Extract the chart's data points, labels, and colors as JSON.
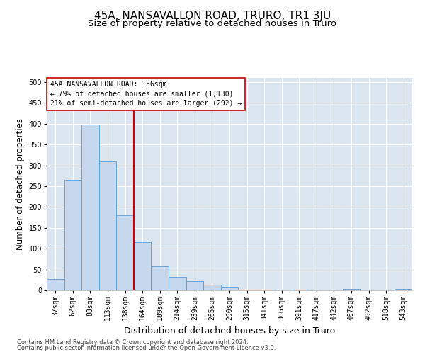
{
  "title": "45A, NANSAVALLON ROAD, TRURO, TR1 3JU",
  "subtitle": "Size of property relative to detached houses in Truro",
  "xlabel": "Distribution of detached houses by size in Truro",
  "ylabel": "Number of detached properties",
  "footer_line1": "Contains HM Land Registry data © Crown copyright and database right 2024.",
  "footer_line2": "Contains public sector information licensed under the Open Government Licence v3.0.",
  "bin_labels": [
    "37sqm",
    "62sqm",
    "88sqm",
    "113sqm",
    "138sqm",
    "164sqm",
    "189sqm",
    "214sqm",
    "239sqm",
    "265sqm",
    "290sqm",
    "315sqm",
    "341sqm",
    "366sqm",
    "391sqm",
    "417sqm",
    "442sqm",
    "467sqm",
    "492sqm",
    "518sqm",
    "543sqm"
  ],
  "bar_values": [
    27,
    265,
    397,
    310,
    180,
    115,
    57,
    32,
    22,
    14,
    7,
    2,
    1,
    0,
    1,
    0,
    0,
    3,
    0,
    0,
    3
  ],
  "bar_color": "#c5d8ed",
  "bar_edge_color": "#5b9bd5",
  "vline_bin_index": 5,
  "vline_color": "#cc0000",
  "annotation_text": "45A NANSAVALLON ROAD: 156sqm\n← 79% of detached houses are smaller (1,130)\n21% of semi-detached houses are larger (292) →",
  "annotation_box_color": "#ffffff",
  "annotation_edge_color": "#cc0000",
  "ylim": [
    0,
    510
  ],
  "yticks": [
    0,
    50,
    100,
    150,
    200,
    250,
    300,
    350,
    400,
    450,
    500
  ],
  "plot_bg_color": "#dce6f1",
  "title_fontsize": 11,
  "subtitle_fontsize": 9.5,
  "ylabel_fontsize": 8.5,
  "xlabel_fontsize": 9,
  "tick_fontsize": 7,
  "annotation_fontsize": 7,
  "footer_fontsize": 6
}
